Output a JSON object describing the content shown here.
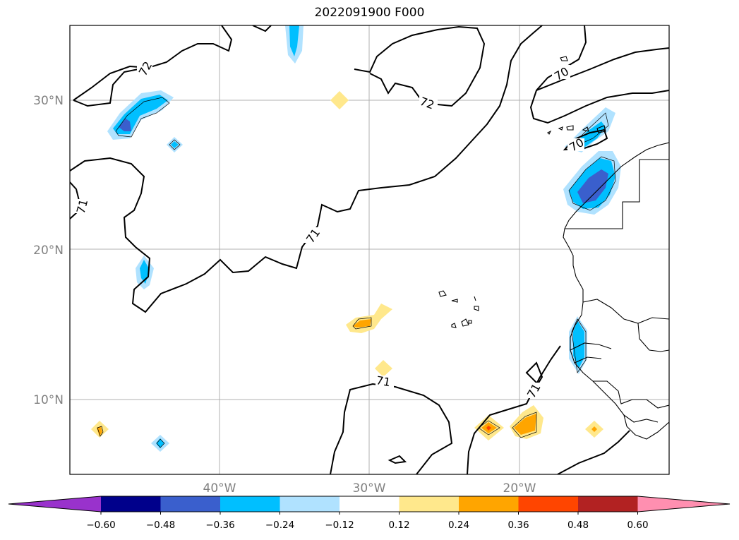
{
  "title": "2022091900 F000",
  "map": {
    "lat_ticks": [
      "30°N",
      "20°N",
      "10°N"
    ],
    "lon_ticks": [
      "40°W",
      "30°W",
      "20°W"
    ],
    "contour_labels": [
      "72",
      "71",
      "72",
      "70",
      "70",
      "71",
      "71",
      "71"
    ],
    "colors": {
      "contour": "#000000",
      "grid": "#b0b0b0",
      "purple": "#9932cc",
      "navy": "#00008b",
      "royal_blue": "#3a5fcd",
      "deep_sky_blue": "#00bfff",
      "light_sky_blue": "#b0e2ff",
      "light_yellow": "#ffe88c",
      "orange": "#ffa500",
      "orange_red": "#ff4500",
      "firebrick": "#b22222",
      "pink": "#ff8fb0"
    }
  },
  "colorbar": {
    "labels": [
      "−0.60",
      "−0.48",
      "−0.36",
      "−0.24",
      "−0.12",
      "0.12",
      "0.24",
      "0.36",
      "0.48",
      "0.60"
    ],
    "colors": [
      "#9932cc",
      "#00008b",
      "#3a5fcd",
      "#00bfff",
      "#b0e2ff",
      "#ffffff",
      "#ffe88c",
      "#ffa500",
      "#ff4500",
      "#b22222",
      "#ff8fb0"
    ]
  }
}
